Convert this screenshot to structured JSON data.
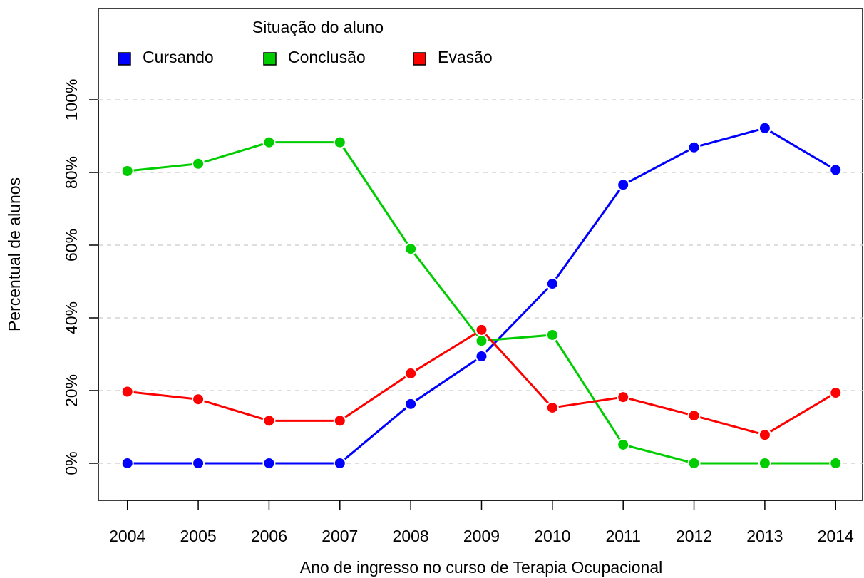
{
  "chart_data": {
    "type": "line",
    "x_label": "Ano de ingresso no curso de Terapia Ocupacional",
    "y_label": "Percentual de alunos",
    "legend_title": "Situação do aluno",
    "legend": "top-left",
    "grid": true,
    "x": [
      2004,
      2005,
      2006,
      2007,
      2008,
      2009,
      2010,
      2011,
      2012,
      2013,
      2014
    ],
    "series": [
      {
        "name": "Cursando",
        "color": "#0000ff",
        "values": [
          0,
          0,
          0,
          0,
          16.3,
          29.4,
          49.4,
          76.6,
          86.9,
          92.2,
          80.7
        ]
      },
      {
        "name": "Conclusão",
        "color": "#00cd00",
        "values": [
          80.4,
          82.4,
          88.3,
          88.3,
          59.0,
          33.7,
          35.3,
          5.1,
          0,
          0,
          0
        ]
      },
      {
        "name": "Evasão",
        "color": "#ff0000",
        "values": [
          19.7,
          17.6,
          11.7,
          11.7,
          24.7,
          36.7,
          15.3,
          18.2,
          13.1,
          7.8,
          19.4
        ]
      }
    ],
    "xlim": [
      2003.59,
      2014.38
    ],
    "xticks": [
      2004,
      2005,
      2006,
      2007,
      2008,
      2009,
      2010,
      2011,
      2012,
      2013,
      2014
    ],
    "ylim": [
      -10.2,
      125.1
    ],
    "yticks": [
      {
        "value": 0,
        "label": "0%"
      },
      {
        "value": 20,
        "label": "20%"
      },
      {
        "value": 40,
        "label": "40%"
      },
      {
        "value": 60,
        "label": "60%"
      },
      {
        "value": 80,
        "label": "80%"
      },
      {
        "value": 100,
        "label": "100%"
      }
    ]
  }
}
